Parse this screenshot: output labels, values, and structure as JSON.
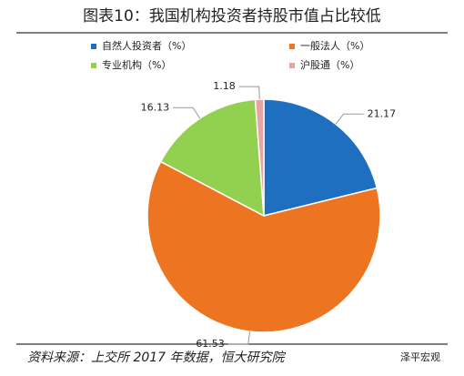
{
  "chart_data": {
    "type": "pie",
    "title": "图表10：我国机构投资者持股市值占比较低",
    "categories": [
      "自然人投资者（%）",
      "一般法人（%）",
      "专业机构（%）",
      "沪股通（%）"
    ],
    "values": [
      21.17,
      61.53,
      16.13,
      1.18
    ],
    "colors": [
      "#1f6fc0",
      "#ed7420",
      "#92d050",
      "#e8a3a3"
    ],
    "source": "资料来源：上交所 2017 年数据，恒大研究院",
    "watermark": "泽平宏观"
  }
}
